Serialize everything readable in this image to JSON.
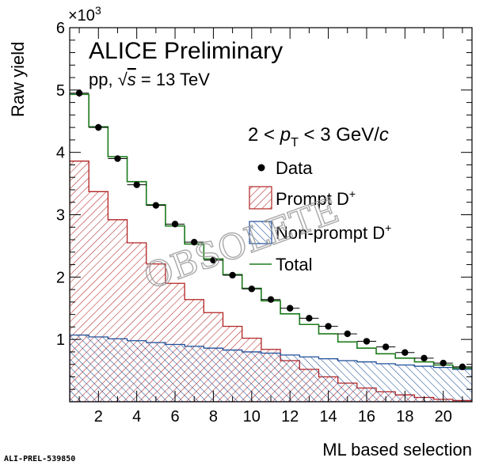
{
  "chart_data": {
    "type": "step",
    "title": "ALICE Preliminary",
    "subtitle_prefix": "pp, ",
    "subtitle_sqrt": "√",
    "subtitle_s": "s",
    "subtitle_suffix": " = 13 TeV",
    "kinematic_range": {
      "left": "2 < ",
      "p": "p",
      "sub": "T",
      "right": " < 3 GeV/",
      "c": "c"
    },
    "xlabel": "ML based selection",
    "ylabel": "Raw yield",
    "y_multiplier": "×10",
    "y_multiplier_exp": "3",
    "xlim": [
      0.5,
      21.5
    ],
    "ylim": [
      0,
      6000
    ],
    "x_ticks": [
      2,
      4,
      6,
      8,
      10,
      12,
      14,
      16,
      18,
      20
    ],
    "y_ticks": [
      1000,
      2000,
      3000,
      4000,
      5000,
      6000
    ],
    "y_tick_labels": [
      "1",
      "2",
      "3",
      "4",
      "5",
      "6"
    ],
    "x_tick_labels": [
      "2",
      "4",
      "6",
      "8",
      "10",
      "12",
      "14",
      "16",
      "18",
      "20"
    ],
    "bins": [
      1,
      2,
      3,
      4,
      5,
      6,
      7,
      8,
      9,
      10,
      11,
      12,
      13,
      14,
      15,
      16,
      17,
      18,
      19,
      20,
      21
    ],
    "series": [
      {
        "name": "Data",
        "style": "points",
        "color": "#000000",
        "values": [
          4950,
          4400,
          3900,
          3480,
          3150,
          2850,
          2560,
          2270,
          2030,
          1810,
          1640,
          1500,
          1340,
          1210,
          1090,
          970,
          880,
          790,
          700,
          620,
          560
        ],
        "errors": [
          60,
          55,
          50,
          45,
          40,
          38,
          35,
          32,
          30,
          28,
          26,
          24,
          22,
          20,
          18,
          17,
          16,
          15,
          14,
          13,
          12
        ]
      },
      {
        "name": "Prompt D",
        "sup": "+",
        "style": "hatched-fill",
        "color": "#b22222",
        "values": [
          3860,
          3370,
          2920,
          2550,
          2210,
          1900,
          1640,
          1430,
          1210,
          1020,
          840,
          660,
          520,
          400,
          300,
          220,
          160,
          110,
          70,
          40,
          20
        ]
      },
      {
        "name": "Non-prompt D",
        "sup": "+",
        "style": "hatched-fill",
        "color": "#1f4e99",
        "values": [
          1070,
          1040,
          1010,
          980,
          950,
          920,
          890,
          860,
          830,
          800,
          780,
          750,
          720,
          690,
          660,
          640,
          610,
          590,
          570,
          550,
          520
        ]
      },
      {
        "name": "Total",
        "style": "step-line",
        "color": "#1b7a1b",
        "values": [
          4930,
          4410,
          3930,
          3530,
          3160,
          2820,
          2530,
          2290,
          2040,
          1820,
          1620,
          1410,
          1240,
          1090,
          960,
          860,
          770,
          700,
          640,
          590,
          540
        ]
      }
    ],
    "legend_position": "top-right",
    "watermark": "OBSOLETE"
  },
  "reference_id": "ALI-PREL-539850"
}
